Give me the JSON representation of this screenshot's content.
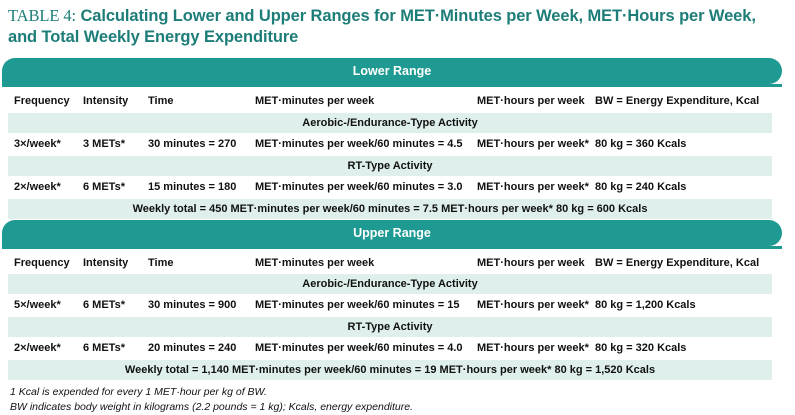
{
  "title": {
    "prefix": "TABLE 4:",
    "line1": "Calculating Lower and Upper Ranges for MET·Minutes per Week, MET·Hours per Week,",
    "line2": "and Total Weekly Energy Expenditure"
  },
  "headers": [
    "Frequency",
    "Intensity",
    "Time",
    "MET·minutes per week",
    "MET·hours per week",
    "BW = Energy Expenditure, Kcal"
  ],
  "lower": {
    "band": "Lower Range",
    "aerobic_label": "Aerobic-/Endurance-Type Activity",
    "aerobic_row": [
      "3×/week*",
      "3 METs*",
      "30 minutes = 270",
      "MET·minutes per week/60 minutes = 4.5",
      "MET·hours per week*",
      "80 kg = 360 Kcals"
    ],
    "rt_label": "RT-Type Activity",
    "rt_row": [
      "2×/week*",
      "6 METs*",
      "15 minutes = 180",
      "MET·minutes per week/60 minutes = 3.0",
      "MET·hours per week*",
      "80 kg = 240 Kcals"
    ],
    "total": "Weekly total = 450 MET·minutes per week/60 minutes = 7.5 MET·hours per week* 80 kg = 600 Kcals"
  },
  "upper": {
    "band": "Upper Range",
    "aerobic_label": "Aerobic-/Endurance-Type Activity",
    "aerobic_row": [
      "5×/week*",
      "6 METs*",
      "30 minutes = 900",
      "MET·minutes per week/60 minutes = 15",
      "MET·hours per week*",
      "80 kg = 1,200 Kcals"
    ],
    "rt_label": "RT-Type Activity",
    "rt_row": [
      "2×/week*",
      "6 METs*",
      "20 minutes = 240",
      "MET·minutes per week/60 minutes = 4.0",
      "MET·hours per week*",
      "80 kg = 320 Kcals"
    ],
    "total": "Weekly total = 1,140 MET·minutes per week/60 minutes = 19 MET·hours per week* 80 kg = 1,520 Kcals"
  },
  "footnotes": [
    "1 Kcal is expended for every 1 MET·hour per kg of BW.",
    "BW indicates body weight in kilograms (2.2 pounds = 1 kg); Kcals, energy expenditure."
  ],
  "colors": {
    "accent": "#1f9a92",
    "shade": "#dff0ec",
    "title": "#1d7d78"
  }
}
